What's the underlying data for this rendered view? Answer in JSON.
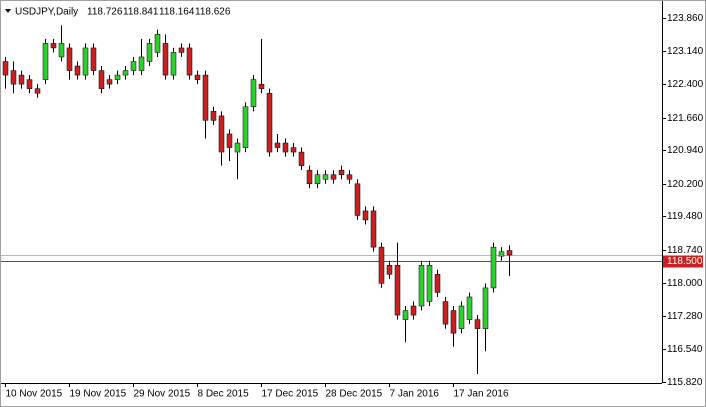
{
  "chart_data": {
    "type": "candlestick",
    "title": "USDJPY,Daily",
    "categories": [
      "10 Nov 2015",
      null,
      null,
      null,
      null,
      null,
      null,
      null,
      "19 Nov 2015",
      null,
      null,
      null,
      null,
      null,
      null,
      null,
      "29 Nov 2015",
      null,
      null,
      null,
      null,
      null,
      null,
      null,
      "8 Dec 2015",
      null,
      null,
      null,
      null,
      null,
      null,
      null,
      "17 Dec 2015",
      null,
      null,
      null,
      null,
      null,
      null,
      null,
      "28 Dec 2015",
      null,
      null,
      null,
      null,
      null,
      null,
      null,
      "7 Jan 2016",
      null,
      null,
      null,
      null,
      null,
      null,
      null,
      "17 Jan 2016",
      null,
      null,
      null,
      null,
      null,
      null,
      null
    ],
    "open": [
      122.9,
      122.7,
      122.6,
      122.5,
      122.3,
      122.5,
      123.3,
      123.0,
      123.2,
      122.8,
      122.6,
      123.2,
      122.7,
      122.5,
      122.5,
      122.6,
      122.7,
      122.7,
      122.9,
      123.1,
      123.3,
      122.6,
      123.2,
      123.2,
      122.6,
      122.6,
      121.8,
      121.7,
      121.3,
      120.9,
      121.0,
      121.9,
      122.4,
      122.2,
      121.1,
      121.1,
      121.0,
      120.9,
      120.5,
      120.2,
      120.3,
      120.4,
      120.5,
      120.4,
      120.2,
      119.6,
      119.6,
      118.8,
      118.4,
      118.4,
      117.2,
      117.5,
      117.5,
      117.6,
      118.2,
      117.6,
      117.4,
      117.0,
      117.2,
      117.2,
      117.0,
      117.9,
      118.6,
      118.726
    ],
    "high": [
      123.0,
      122.9,
      122.7,
      122.6,
      122.4,
      123.4,
      123.4,
      123.7,
      123.3,
      122.9,
      123.3,
      123.3,
      122.8,
      122.6,
      122.7,
      122.8,
      123.0,
      123.4,
      123.4,
      123.6,
      123.5,
      123.2,
      123.3,
      123.3,
      122.7,
      122.7,
      121.9,
      121.8,
      121.4,
      121.2,
      122.0,
      122.6,
      123.4,
      122.3,
      121.3,
      121.2,
      121.1,
      121.0,
      120.6,
      120.5,
      120.5,
      120.5,
      120.6,
      120.5,
      120.3,
      119.7,
      119.7,
      118.9,
      118.5,
      118.9,
      117.5,
      117.6,
      118.5,
      118.5,
      118.3,
      117.7,
      117.5,
      117.6,
      117.8,
      117.3,
      118.0,
      118.9,
      118.8,
      118.841
    ],
    "low": [
      122.3,
      122.2,
      122.3,
      122.2,
      122.1,
      122.4,
      123.1,
      122.9,
      122.5,
      122.5,
      122.5,
      122.6,
      122.2,
      122.3,
      122.4,
      122.5,
      122.6,
      122.6,
      122.8,
      123.0,
      122.5,
      122.5,
      123.0,
      122.5,
      122.4,
      121.2,
      121.5,
      120.6,
      120.7,
      120.3,
      120.9,
      121.8,
      122.2,
      120.8,
      120.9,
      120.8,
      120.8,
      120.5,
      120.1,
      120.1,
      120.2,
      120.2,
      120.3,
      120.2,
      119.4,
      119.3,
      118.7,
      117.9,
      118.1,
      117.2,
      116.7,
      117.2,
      117.4,
      117.5,
      117.7,
      117.0,
      116.6,
      116.9,
      117.1,
      116.0,
      116.5,
      117.8,
      118.5,
      118.164
    ],
    "close": [
      122.6,
      122.4,
      122.4,
      122.3,
      122.2,
      123.3,
      123.2,
      123.3,
      122.7,
      122.6,
      123.2,
      122.7,
      122.3,
      122.4,
      122.6,
      122.7,
      122.9,
      123.0,
      123.3,
      123.5,
      122.6,
      123.1,
      123.1,
      122.6,
      122.5,
      121.6,
      121.6,
      120.9,
      121.0,
      121.1,
      121.9,
      122.5,
      122.3,
      120.9,
      121.0,
      120.9,
      120.9,
      120.6,
      120.2,
      120.4,
      120.4,
      120.3,
      120.4,
      120.3,
      119.5,
      119.4,
      118.8,
      118.0,
      118.2,
      117.3,
      117.4,
      117.3,
      118.4,
      118.4,
      117.8,
      117.1,
      116.9,
      117.5,
      117.7,
      117.0,
      117.9,
      118.8,
      118.7,
      118.626
    ],
    "up_color": "#2bd12b",
    "down_color": "#cc2020",
    "ylim": [
      115.8,
      124.17
    ],
    "yticks": [
      {
        "value": 123.86,
        "label": "123.860"
      },
      {
        "value": 123.14,
        "label": "123.140"
      },
      {
        "value": 122.4,
        "label": "122.400"
      },
      {
        "value": 121.66,
        "label": "121.660"
      },
      {
        "value": 120.94,
        "label": "120.940"
      },
      {
        "value": 120.2,
        "label": "120.200"
      },
      {
        "value": 119.48,
        "label": "119.480"
      },
      {
        "value": 118.74,
        "label": "118.740"
      },
      {
        "value": 118.0,
        "label": "118.000"
      },
      {
        "value": 117.28,
        "label": "117.280"
      },
      {
        "value": 116.54,
        "label": "116.540"
      },
      {
        "value": 115.82,
        "label": "115.820"
      }
    ],
    "level": {
      "value": 118.5,
      "label": "118.500",
      "color": "#cc2020"
    }
  }
}
